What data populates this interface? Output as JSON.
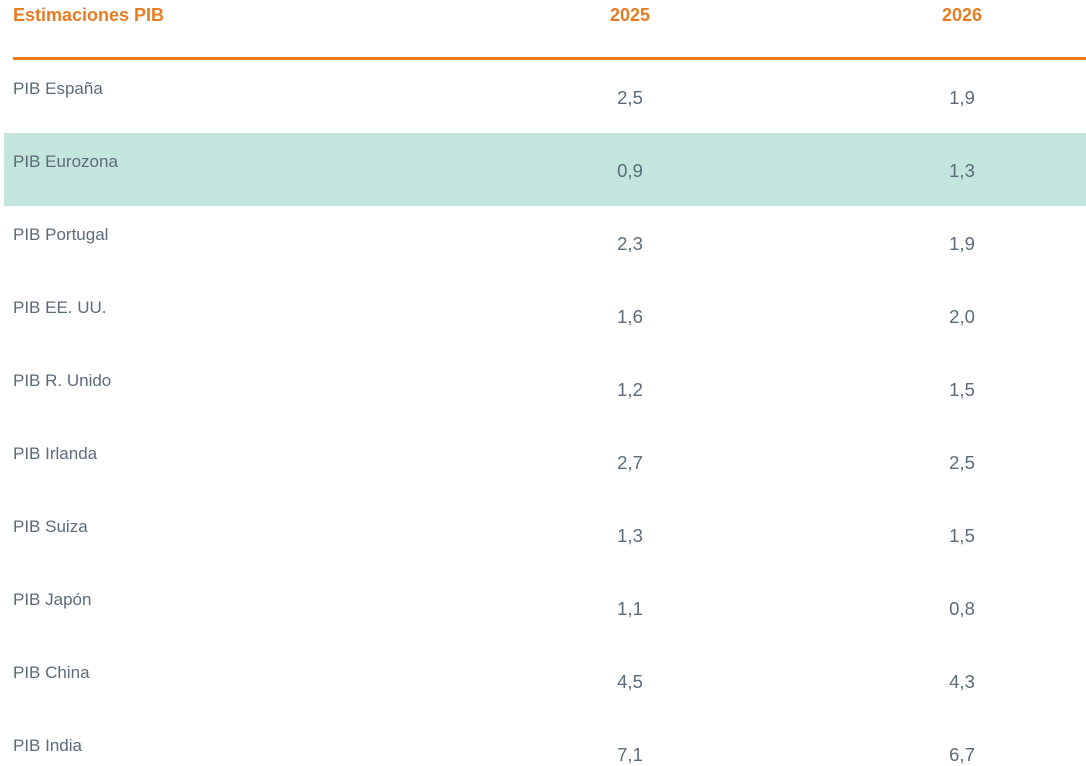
{
  "table": {
    "header": {
      "label": "Estimaciones PIB",
      "col_2025": "2025",
      "col_2026": "2026"
    },
    "rows": [
      {
        "label": "PIB España",
        "y2025": "2,5",
        "y2026": "1,9",
        "highlighted": false
      },
      {
        "label": "PIB Eurozona",
        "y2025": "0,9",
        "y2026": "1,3",
        "highlighted": true
      },
      {
        "label": "PIB Portugal",
        "y2025": "2,3",
        "y2026": "1,9",
        "highlighted": false
      },
      {
        "label": "PIB EE. UU.",
        "y2025": "1,6",
        "y2026": "2,0",
        "highlighted": false
      },
      {
        "label": "PIB R. Unido",
        "y2025": "1,2",
        "y2026": "1,5",
        "highlighted": false
      },
      {
        "label": "PIB Irlanda",
        "y2025": "2,7",
        "y2026": "2,5",
        "highlighted": false
      },
      {
        "label": "PIB Suiza",
        "y2025": "1,3",
        "y2026": "1,5",
        "highlighted": false
      },
      {
        "label": "PIB Japón",
        "y2025": "1,1",
        "y2026": "0,8",
        "highlighted": false
      },
      {
        "label": "PIB China",
        "y2025": "4,5",
        "y2026": "4,3",
        "highlighted": false
      },
      {
        "label": "PIB India",
        "y2025": "7,1",
        "y2026": "6,7",
        "highlighted": false
      }
    ],
    "colors": {
      "accent_orange": "#e87c22",
      "text_slate": "#5c6b7a",
      "highlight_teal": "#c4e4de"
    }
  },
  "chart_data": {
    "type": "table",
    "title": "Estimaciones PIB",
    "categories": [
      "PIB España",
      "PIB Eurozona",
      "PIB Portugal",
      "PIB EE. UU.",
      "PIB R. Unido",
      "PIB Irlanda",
      "PIB Suiza",
      "PIB Japón",
      "PIB China",
      "PIB India"
    ],
    "series": [
      {
        "name": "2025",
        "values": [
          2.5,
          0.9,
          2.3,
          1.6,
          1.2,
          2.7,
          1.3,
          1.1,
          4.5,
          7.1
        ]
      },
      {
        "name": "2026",
        "values": [
          1.9,
          1.3,
          1.9,
          2.0,
          1.5,
          2.5,
          1.5,
          0.8,
          4.3,
          6.7
        ]
      }
    ],
    "highlighted_row": "PIB Eurozona",
    "value_format": "decimal-comma, one decimal place"
  }
}
